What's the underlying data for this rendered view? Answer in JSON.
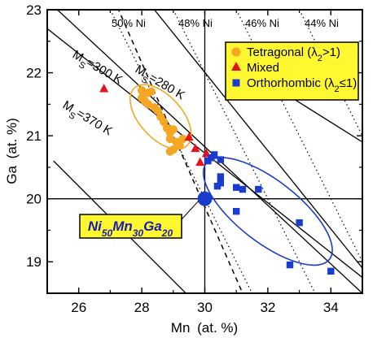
{
  "chart_data": {
    "type": "scatter",
    "xlabel": "Mn",
    "xlabel_unit": "(at. %)",
    "ylabel": "Ga",
    "ylabel_unit": "(at. %)",
    "xlim": [
      25,
      35
    ],
    "ylim": [
      18.5,
      23
    ],
    "x_ticks": [
      26,
      28,
      30,
      32,
      34
    ],
    "y_ticks": [
      19,
      20,
      21,
      22,
      23
    ],
    "legend_position": "top-right",
    "series": [
      {
        "name": "Tetragonal (λ₂>1)",
        "name_main": "Tetragonal (λ",
        "name_sub": "2",
        "name_end": ">1)",
        "marker": "circle",
        "color": "#f5a623",
        "points": [
          [
            28.0,
            21.72
          ],
          [
            28.2,
            21.68
          ],
          [
            28.3,
            21.7
          ],
          [
            28.0,
            21.6
          ],
          [
            28.1,
            21.55
          ],
          [
            28.2,
            21.5
          ],
          [
            28.4,
            21.45
          ],
          [
            28.5,
            21.4
          ],
          [
            28.6,
            21.3
          ],
          [
            28.7,
            21.22
          ],
          [
            28.8,
            21.12
          ],
          [
            28.9,
            21.05
          ],
          [
            29.0,
            21.1
          ],
          [
            28.9,
            20.95
          ],
          [
            29.1,
            20.9
          ],
          [
            29.2,
            20.85
          ],
          [
            29.0,
            20.78
          ],
          [
            29.3,
            20.95
          ],
          [
            28.9,
            20.75
          ]
        ]
      },
      {
        "name": "Mixed",
        "marker": "triangle",
        "color": "#e8101a",
        "points": [
          [
            26.8,
            21.75
          ],
          [
            29.5,
            20.98
          ],
          [
            29.7,
            20.8
          ],
          [
            29.85,
            20.58
          ],
          [
            30.05,
            20.72
          ]
        ]
      },
      {
        "name": "Orthorhombic (λ₂≤1)",
        "name_main": "Orthorhombic (λ",
        "name_sub": "2",
        "name_end": "≤1)",
        "marker": "square",
        "color": "#1a3ccc",
        "points": [
          [
            30.2,
            20.65
          ],
          [
            30.3,
            20.7
          ],
          [
            30.5,
            20.62
          ],
          [
            30.1,
            20.6
          ],
          [
            30.5,
            20.35
          ],
          [
            30.5,
            20.25
          ],
          [
            30.4,
            20.2
          ],
          [
            31.0,
            20.18
          ],
          [
            31.2,
            20.15
          ],
          [
            31.7,
            20.15
          ],
          [
            31.0,
            19.8
          ],
          [
            33.0,
            19.62
          ],
          [
            32.7,
            18.95
          ],
          [
            34.0,
            18.85
          ]
        ]
      }
    ],
    "composition_point": {
      "x": 30,
      "y": 20,
      "color": "#1a3ccc"
    },
    "composition_label": {
      "parts": [
        {
          "text": "Ni",
          "sub": false
        },
        {
          "text": "50",
          "sub": true
        },
        {
          "text": "Mn",
          "sub": false
        },
        {
          "text": "30",
          "sub": true
        },
        {
          "text": "Ga",
          "sub": false
        },
        {
          "text": "20",
          "sub": true
        }
      ],
      "background": "#fff830"
    },
    "ni_lines": [
      {
        "label": "50% Ni",
        "ni": 50
      },
      {
        "label": "48% Ni",
        "ni": 48
      },
      {
        "label": "46% Ni",
        "ni": 46
      },
      {
        "label": "44% Ni",
        "ni": 44
      }
    ],
    "ms_lines": [
      {
        "label": "Ms=280 K",
        "text_main": "M",
        "text_sub": "S",
        "text_end": "=280 K"
      },
      {
        "label": "Ms=300 K",
        "text_main": "M",
        "text_sub": "S",
        "text_end": "=300 K"
      },
      {
        "label": "Ms=370 K",
        "text_main": "M",
        "text_sub": "S",
        "text_end": "=370 K"
      }
    ],
    "legend_background": "#fff830",
    "grid": false
  }
}
